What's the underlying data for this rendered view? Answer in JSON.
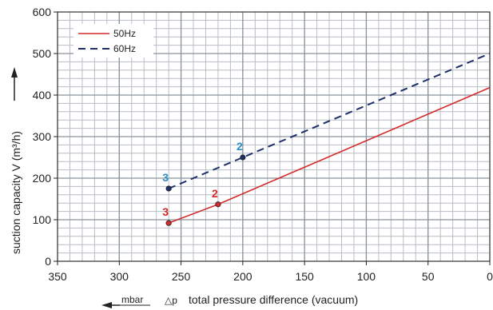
{
  "chart_data": {
    "type": "line",
    "xlabel": "total pressure difference (vacuum)",
    "xlabel_symbol": "△p",
    "x_unit": "mbar",
    "ylabel": "suction capacity V (m³/h)",
    "xlim": [
      350,
      0
    ],
    "ylim": [
      0,
      600
    ],
    "x_reversed": true,
    "x_ticks": [
      350,
      300,
      250,
      200,
      150,
      100,
      50,
      0
    ],
    "y_ticks": [
      0,
      100,
      200,
      300,
      400,
      500,
      600
    ],
    "x_minor_step": 10,
    "y_minor_step": 20,
    "grid": true,
    "legend_position": "top-left",
    "series": [
      {
        "name": "50Hz",
        "color": "#d42a2a",
        "dash": "solid",
        "x": [
          260,
          220,
          0
        ],
        "y": [
          92,
          137,
          418
        ]
      },
      {
        "name": "60Hz",
        "color": "#1f2f6b",
        "dash": "dashed",
        "x": [
          260,
          200,
          0
        ],
        "y": [
          175,
          250,
          500
        ]
      }
    ],
    "markers": [
      {
        "series": 0,
        "x": 260,
        "y": 92,
        "label": "3",
        "label_color": "#d42a2a"
      },
      {
        "series": 0,
        "x": 220,
        "y": 137,
        "label": "2",
        "label_color": "#d42a2a"
      },
      {
        "series": 1,
        "x": 260,
        "y": 175,
        "label": "3",
        "label_color": "#2a8fc6"
      },
      {
        "series": 1,
        "x": 200,
        "y": 250,
        "label": "2",
        "label_color": "#2a8fc6"
      }
    ]
  }
}
